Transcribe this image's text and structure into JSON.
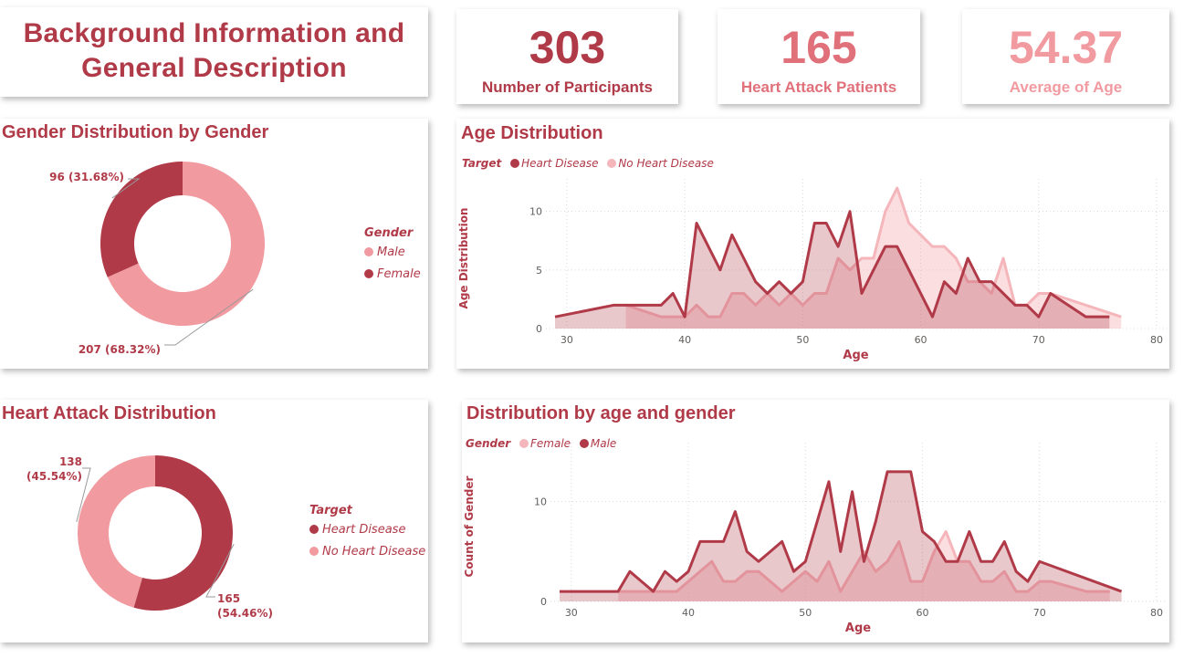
{
  "header": {
    "title_line1": "Background Information and",
    "title_line2": "General Description"
  },
  "kpis": [
    {
      "value": "303",
      "label": "Number of Participants",
      "color": "#b03a48"
    },
    {
      "value": "165",
      "label": "Heart Attack Patients",
      "color": "#e0707a"
    },
    {
      "value": "54.37",
      "label": "Average of Age",
      "color": "#f19aa0"
    }
  ],
  "colors": {
    "dark": "#b03a48",
    "light": "#f19aa0",
    "lightest": "#f5b6bb"
  },
  "chart_data": [
    {
      "type": "pie",
      "title": "Gender Distribution by Gender",
      "legend_title": "Gender",
      "categories": [
        "Male",
        "Female"
      ],
      "values": [
        207,
        96
      ],
      "labels": [
        "207 (68.32%)",
        "96 (31.68%)"
      ],
      "colors": [
        "#f19aa0",
        "#b03a48"
      ],
      "donut": true,
      "legend_position": "right"
    },
    {
      "type": "area",
      "title": "Age Distribution",
      "legend_title": "Target",
      "xlabel": "Age",
      "ylabel": "Age Distribution",
      "xlim": [
        29,
        80
      ],
      "ylim": [
        0,
        12
      ],
      "xticks": [
        30,
        40,
        50,
        60,
        70,
        80
      ],
      "yticks": [
        0,
        5,
        10
      ],
      "grid": true,
      "legend_position": "top-left",
      "series": [
        {
          "name": "Heart Disease",
          "color": "#b03a48",
          "x": [
            29,
            34,
            35,
            37,
            38,
            39,
            40,
            41,
            42,
            43,
            44,
            45,
            46,
            47,
            48,
            49,
            50,
            51,
            52,
            53,
            54,
            55,
            56,
            57,
            58,
            59,
            60,
            61,
            62,
            63,
            64,
            65,
            66,
            67,
            68,
            69,
            70,
            71,
            74,
            76
          ],
          "y": [
            1,
            2,
            2,
            2,
            2,
            3,
            1,
            9,
            7,
            5,
            8,
            6,
            4,
            3,
            4,
            3,
            4,
            9,
            9,
            7,
            10,
            3,
            5,
            7,
            7,
            5,
            3,
            1,
            4,
            3,
            6,
            4,
            4,
            3,
            2,
            2,
            1,
            3,
            1,
            1
          ]
        },
        {
          "name": "No Heart Disease",
          "color": "#f5b6bb",
          "x": [
            35,
            38,
            39,
            40,
            41,
            42,
            43,
            44,
            45,
            46,
            47,
            48,
            49,
            50,
            51,
            52,
            53,
            54,
            55,
            56,
            57,
            58,
            59,
            60,
            61,
            62,
            63,
            64,
            65,
            66,
            67,
            68,
            69,
            70,
            71,
            77
          ],
          "y": [
            2,
            1,
            1,
            1,
            2,
            1,
            1,
            3,
            3,
            2,
            3,
            2,
            3,
            2,
            3,
            3,
            6,
            5,
            6,
            6,
            10,
            12,
            9,
            8,
            7,
            7,
            6,
            4,
            4,
            3,
            6,
            2,
            2,
            3,
            3,
            1
          ]
        }
      ]
    },
    {
      "type": "pie",
      "title": "Heart Attack Distribution",
      "legend_title": "Target",
      "categories": [
        "Heart Disease",
        "No Heart Disease"
      ],
      "values": [
        165,
        138
      ],
      "labels": [
        "165 (54.46%)",
        "138 (45.54%)"
      ],
      "colors": [
        "#b03a48",
        "#f19aa0"
      ],
      "donut": true,
      "legend_position": "right"
    },
    {
      "type": "area",
      "title": "Distribution by age and gender",
      "legend_title": "Gender",
      "xlabel": "Age",
      "ylabel": "Count of Gender",
      "xlim": [
        29,
        80
      ],
      "ylim": [
        0,
        15
      ],
      "xticks": [
        30,
        40,
        50,
        60,
        70,
        80
      ],
      "yticks": [
        0,
        10
      ],
      "grid": true,
      "legend_position": "top-left",
      "series": [
        {
          "name": "Female",
          "color": "#f5b6bb",
          "x": [
            34,
            35,
            37,
            38,
            39,
            40,
            41,
            42,
            43,
            44,
            45,
            46,
            47,
            48,
            49,
            50,
            51,
            52,
            53,
            54,
            55,
            56,
            57,
            58,
            59,
            60,
            61,
            62,
            63,
            64,
            65,
            66,
            67,
            68,
            69,
            70,
            71,
            74,
            76
          ],
          "y": [
            1,
            1,
            1,
            1,
            1,
            2,
            3,
            4,
            2,
            2,
            3,
            3,
            2,
            1,
            2,
            3,
            2,
            4,
            1,
            3,
            5,
            3,
            4,
            6,
            2,
            2,
            5,
            7,
            4,
            4,
            2,
            2,
            3,
            1,
            1,
            2,
            2,
            1,
            1
          ]
        },
        {
          "name": "Male",
          "color": "#b03a48",
          "x": [
            29,
            34,
            35,
            36,
            37,
            38,
            39,
            40,
            41,
            42,
            43,
            44,
            45,
            46,
            47,
            48,
            49,
            50,
            51,
            52,
            53,
            54,
            55,
            56,
            57,
            58,
            59,
            60,
            61,
            62,
            63,
            64,
            65,
            66,
            67,
            68,
            69,
            70,
            77
          ],
          "y": [
            1,
            1,
            3,
            2,
            1,
            3,
            2,
            3,
            6,
            6,
            6,
            9,
            5,
            4,
            5,
            6,
            3,
            4,
            8,
            12,
            5,
            11,
            4,
            8,
            13,
            13,
            13,
            7,
            6,
            4,
            4,
            7,
            4,
            4,
            6,
            3,
            2,
            4,
            1
          ]
        }
      ]
    }
  ]
}
